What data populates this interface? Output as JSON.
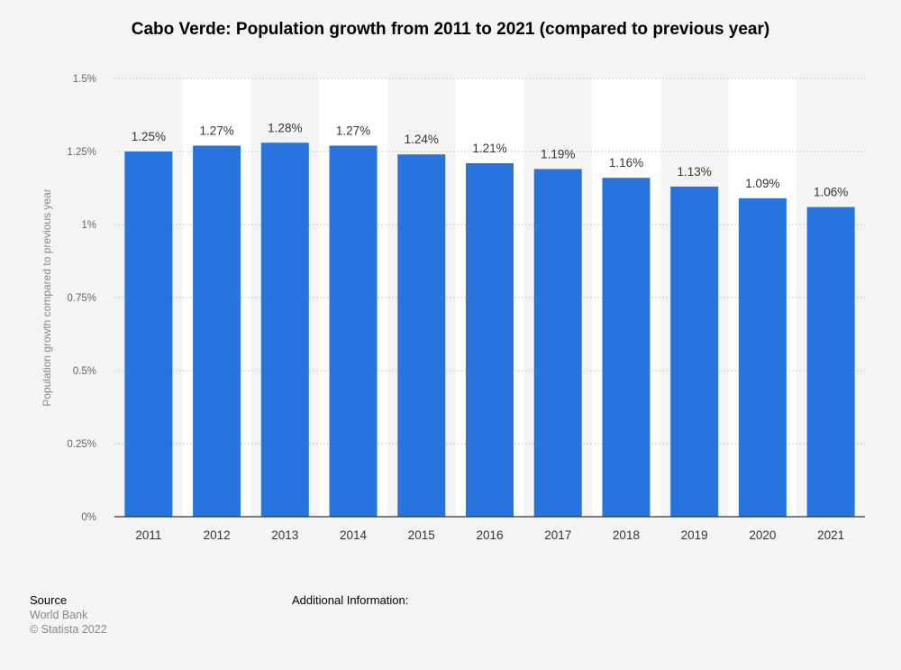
{
  "chart_data": {
    "type": "bar",
    "title": "Cabo Verde: Population growth from 2011 to 2021 (compared to previous year)",
    "ylabel": "Population growth compared to previous year",
    "xlabel": "",
    "categories": [
      "2011",
      "2012",
      "2013",
      "2014",
      "2015",
      "2016",
      "2017",
      "2018",
      "2019",
      "2020",
      "2021"
    ],
    "values": [
      1.25,
      1.27,
      1.28,
      1.27,
      1.24,
      1.21,
      1.19,
      1.16,
      1.13,
      1.09,
      1.06
    ],
    "value_labels": [
      "1.25%",
      "1.27%",
      "1.28%",
      "1.27%",
      "1.24%",
      "1.21%",
      "1.19%",
      "1.16%",
      "1.13%",
      "1.09%",
      "1.06%"
    ],
    "ylim": [
      0,
      1.5
    ],
    "yticks": [
      0,
      0.25,
      0.5,
      0.75,
      1,
      1.25,
      1.5
    ],
    "ytick_labels": [
      "0%",
      "0.25%",
      "0.5%",
      "0.75%",
      "1%",
      "1.25%",
      "1.5%"
    ],
    "grid": true,
    "bar_color": "#2874df"
  },
  "footer": {
    "source_heading": "Source",
    "source_name": "World Bank",
    "copyright": "© Statista 2022",
    "additional_info": "Additional Information:"
  }
}
